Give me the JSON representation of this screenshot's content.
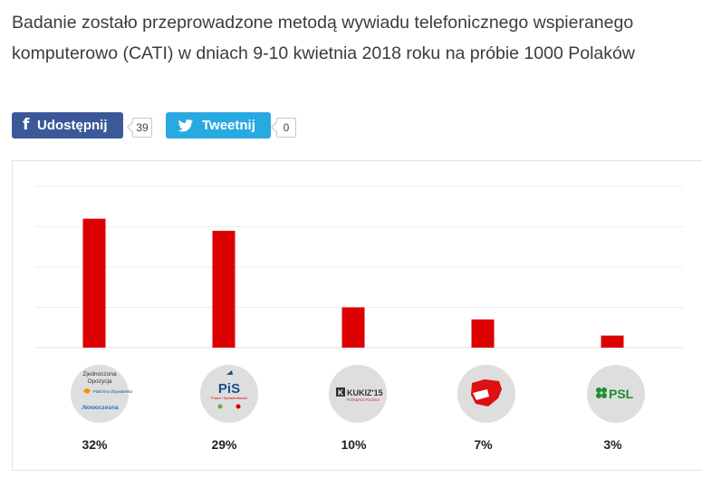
{
  "intro": {
    "text": "Badanie zostało przeprowadzone metodą wywiadu telefonicznego wspieranego komputerowo (CATI) w dniach 9-10 kwietnia 2018 roku na próbie 1000 Polaków"
  },
  "share": {
    "facebook": {
      "label": "Udostępnij",
      "count": "39",
      "icon": "facebook-icon",
      "color": "#3b5998"
    },
    "twitter": {
      "label": "Tweetnij",
      "count": "0",
      "icon": "twitter-bird-icon",
      "color": "#29a9e1"
    }
  },
  "chart_data": {
    "type": "bar",
    "categories": [
      "Zjednoczona Opozycja",
      "PiS",
      "Kukiz'15",
      "Wolność (Korwin)",
      "PSL"
    ],
    "values": [
      32,
      29,
      10,
      7,
      3
    ],
    "value_labels": [
      "32%",
      "29%",
      "10%",
      "7%",
      "3%"
    ],
    "ylim": [
      0,
      40
    ],
    "grid": true,
    "bar_color": "#dd0000",
    "logo_texts": {
      "zo_line1": "Zjednoczona",
      "zo_line2": "Opozycja",
      "zo_po": "Platforma Obywatelska",
      "zo_nowoczesna": ".Nowoczesna",
      "pis": "PiS",
      "pis_sub": "Prawo i Sprawiedliwość",
      "kukiz": "KUKIZ'15",
      "kukiz_sub": "POTRAFISZ POLSKO!",
      "psl": "PSL"
    }
  }
}
